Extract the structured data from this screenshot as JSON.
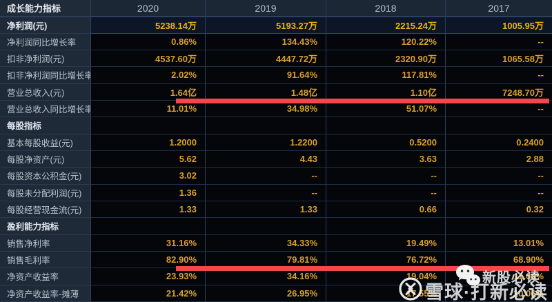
{
  "colors": {
    "accent_red": "#f4474d",
    "value_gold": "#d9a02d",
    "highlight_gold": "#f0b40e",
    "label_column_bg": "#1f2a38",
    "cell_bg": "#040609"
  },
  "table": {
    "header": {
      "label": "成长能力指标",
      "years": [
        "2020",
        "2019",
        "2018",
        "2017"
      ]
    },
    "rows": [
      {
        "type": "highlight",
        "label": "净利润(元)",
        "values": [
          "5238.14万",
          "5193.27万",
          "2215.24万",
          "1005.95万"
        ]
      },
      {
        "type": "data",
        "label": "净利润同比增长率",
        "values": [
          "0.86%",
          "134.43%",
          "120.22%",
          "--"
        ]
      },
      {
        "type": "data",
        "label": "扣非净利润(元)",
        "values": [
          "4537.60万",
          "4447.72万",
          "2320.90万",
          "1065.58万"
        ]
      },
      {
        "type": "data",
        "label": "扣非净利润同比增长率",
        "values": [
          "2.02%",
          "91.64%",
          "117.81%",
          "--"
        ]
      },
      {
        "type": "data",
        "label": "营业总收入(元)",
        "values": [
          "1.64亿",
          "1.48亿",
          "1.10亿",
          "7248.70万"
        ],
        "underline": true
      },
      {
        "type": "data",
        "label": "营业总收入同比增长率",
        "values": [
          "11.01%",
          "34.98%",
          "51.07%",
          "--"
        ]
      },
      {
        "type": "section",
        "label": "每股指标",
        "values": [
          "",
          "",
          "",
          ""
        ]
      },
      {
        "type": "data",
        "label": "基本每股收益(元)",
        "values": [
          "1.2000",
          "1.2200",
          "0.5200",
          "0.2400"
        ]
      },
      {
        "type": "data",
        "label": "每股净资产(元)",
        "values": [
          "5.62",
          "4.43",
          "3.63",
          "2.88"
        ]
      },
      {
        "type": "data",
        "label": "每股资本公积金(元)",
        "values": [
          "3.02",
          "--",
          "--",
          "--"
        ]
      },
      {
        "type": "data",
        "label": "每股未分配利润(元)",
        "values": [
          "1.36",
          "--",
          "--",
          "--"
        ]
      },
      {
        "type": "data",
        "label": "每股经营现金流(元)",
        "values": [
          "1.33",
          "1.33",
          "0.66",
          "0.32"
        ]
      },
      {
        "type": "section",
        "label": "盈利能力指标",
        "values": [
          "",
          "",
          "",
          ""
        ]
      },
      {
        "type": "data",
        "label": "销售净利率",
        "values": [
          "31.16%",
          "34.33%",
          "19.49%",
          "13.01%"
        ]
      },
      {
        "type": "data",
        "label": "销售毛利率",
        "values": [
          "82.90%",
          "79.81%",
          "76.72%",
          "68.90%"
        ],
        "underline": true
      },
      {
        "type": "data",
        "label": "净资产收益率",
        "values": [
          "23.93%",
          "34.16%",
          "19.04%",
          "11.06%"
        ]
      },
      {
        "type": "data",
        "label": "净资产收益率-摊薄",
        "values": [
          "21.42%",
          "26.95%",
          "17.55%",
          "10.06%"
        ]
      }
    ]
  },
  "watermark": {
    "wechat_label": "新股必读",
    "xueqiu_label": "雪球·打新必读"
  }
}
